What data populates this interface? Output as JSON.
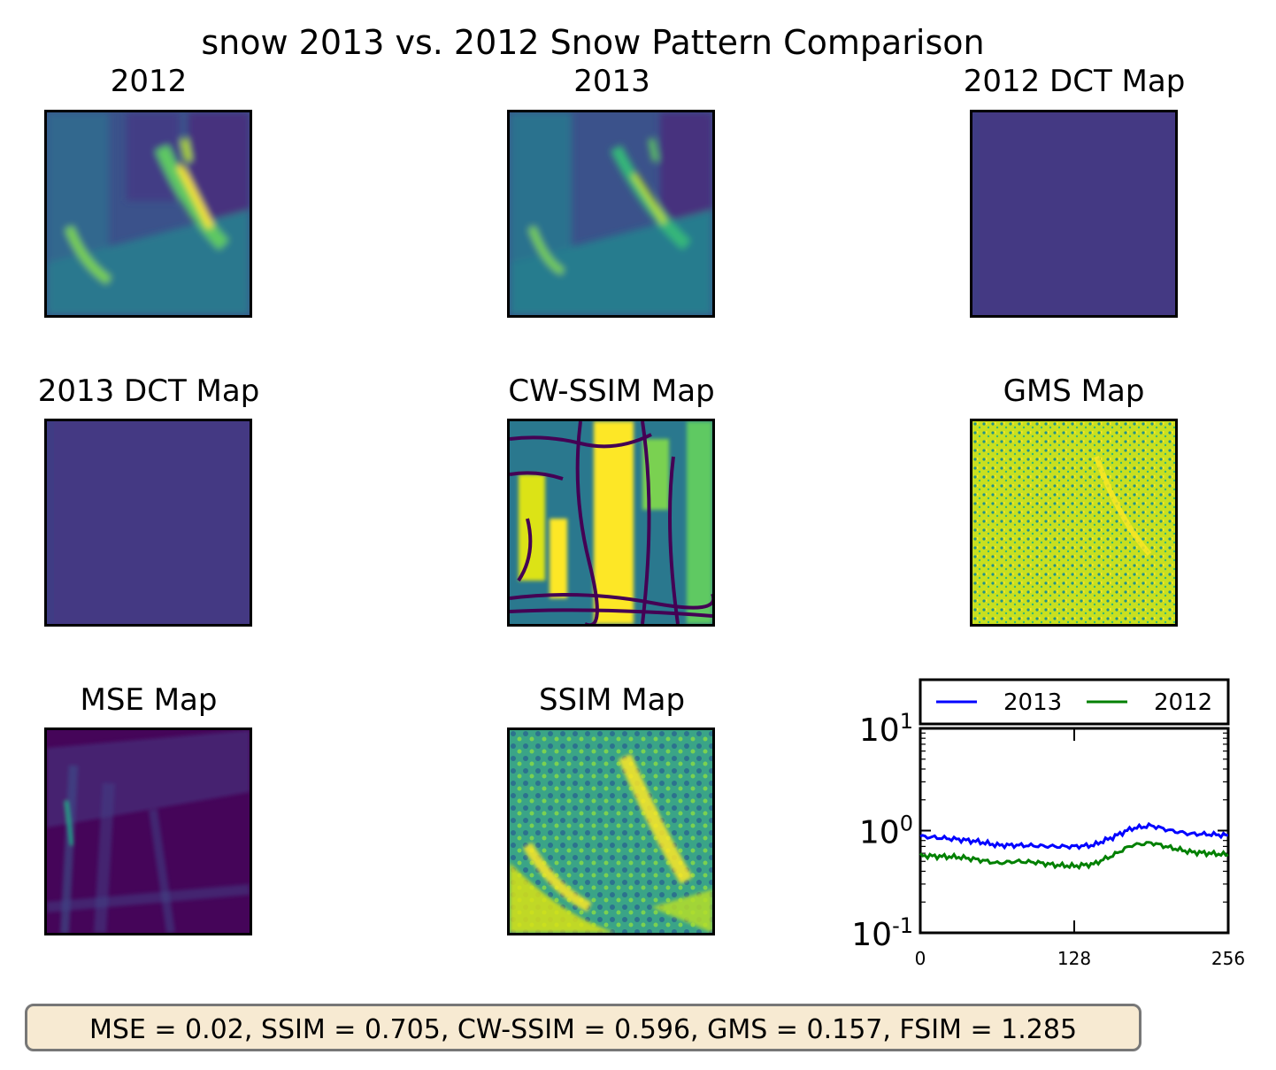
{
  "suptitle": "snow 2013 vs. 2012 Snow Pattern Comparison",
  "panels": {
    "p2012": {
      "title": "2012",
      "colormap": "viridis"
    },
    "p2013": {
      "title": "2013",
      "colormap": "viridis"
    },
    "dct2012": {
      "title": "2012 DCT Map",
      "colormap": "viridis"
    },
    "dct2013": {
      "title": "2013 DCT Map",
      "colormap": "viridis"
    },
    "cwssim": {
      "title": "CW-SSIM Map",
      "colormap": "viridis"
    },
    "gms": {
      "title": "GMS Map",
      "colormap": "viridis"
    },
    "mse": {
      "title": "MSE Map",
      "colormap": "viridis"
    },
    "ssim": {
      "title": "SSIM Map",
      "colormap": "viridis"
    }
  },
  "stats_text": "MSE = 0.02, SSIM = 0.705, CW-SSIM = 0.596, GMS = 0.157, FSIM = 1.285",
  "colors": {
    "viridis_dark": "#440154",
    "viridis_mid": "#21918c",
    "viridis_yellow": "#fde725",
    "dct_fill": "#443983",
    "stats_bg": "#f7ead2"
  },
  "chart_data": {
    "type": "line",
    "yscale": "log",
    "ylim": [
      0.1,
      10
    ],
    "xlim": [
      0,
      256
    ],
    "x_ticks": [
      "0",
      "128",
      "256"
    ],
    "y_ticks": [
      {
        "base": "10",
        "exp": "1",
        "value": 10
      },
      {
        "base": "10",
        "exp": "0",
        "value": 1
      },
      {
        "base": "10",
        "exp": "-1",
        "value": 0.1
      }
    ],
    "legend_position": "top",
    "x": [
      0,
      16,
      32,
      48,
      64,
      80,
      96,
      112,
      128,
      144,
      160,
      176,
      192,
      208,
      224,
      240,
      256
    ],
    "series": [
      {
        "name": "2013",
        "color": "#0000ff",
        "values": [
          0.88,
          0.85,
          0.82,
          0.78,
          0.72,
          0.72,
          0.71,
          0.7,
          0.7,
          0.72,
          0.86,
          1.05,
          1.12,
          1.0,
          0.93,
          0.92,
          0.9
        ]
      },
      {
        "name": "2012",
        "color": "#008000",
        "values": [
          0.57,
          0.56,
          0.55,
          0.52,
          0.48,
          0.5,
          0.49,
          0.46,
          0.45,
          0.47,
          0.57,
          0.72,
          0.76,
          0.68,
          0.62,
          0.6,
          0.58
        ]
      }
    ]
  }
}
